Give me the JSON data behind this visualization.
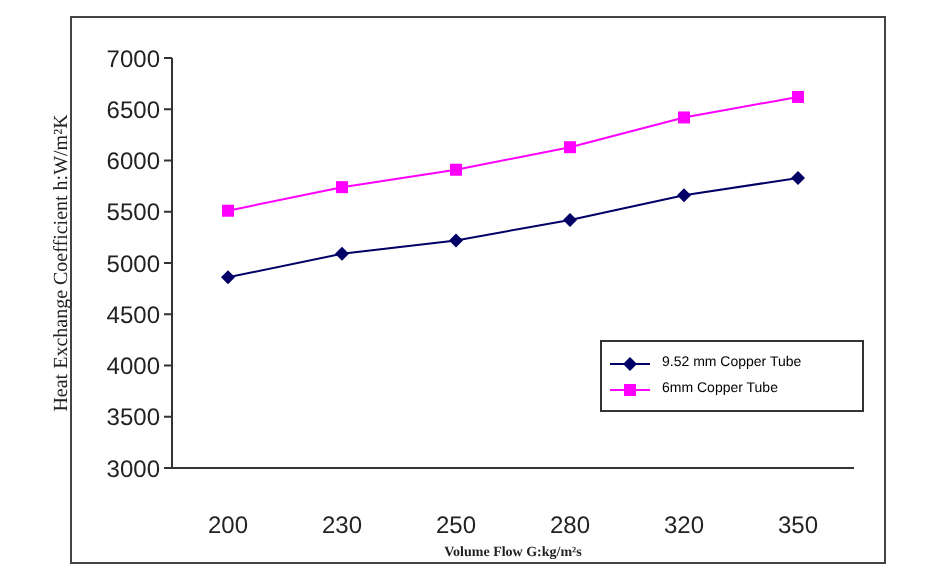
{
  "chart_data": {
    "type": "line",
    "xlabel": "Volume Flow G:kg/m²s",
    "ylabel": "Heat Exchange Coefficient h:W/m²K",
    "categories": [
      "200",
      "230",
      "250",
      "280",
      "320",
      "350"
    ],
    "series": [
      {
        "name": "9.52 mm Copper Tube",
        "color": "#000066",
        "values": [
          4860,
          5090,
          5220,
          5420,
          5660,
          5830
        ],
        "marker": "diamond"
      },
      {
        "name": "6mm Copper Tube",
        "color": "#ff00ff",
        "values": [
          5510,
          5740,
          5910,
          6130,
          6420,
          6620
        ],
        "marker": "square"
      }
    ],
    "ylim": [
      3000,
      7000
    ],
    "yticks": [
      3000,
      3500,
      4000,
      4500,
      5000,
      5500,
      6000,
      6500,
      7000
    ],
    "grid": false,
    "legend": "bottom right",
    "line_style": "solid"
  }
}
